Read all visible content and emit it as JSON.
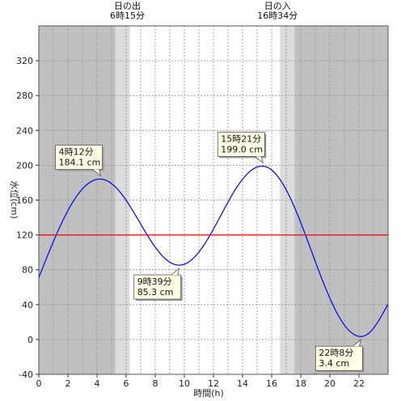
{
  "chart_data": {
    "type": "line",
    "xlabel": "時間(h)",
    "ylabel": "水位(cm)",
    "xlim": [
      0,
      24
    ],
    "ylim": [
      -40,
      360
    ],
    "xticks": [
      0,
      2,
      4,
      6,
      8,
      10,
      12,
      14,
      16,
      18,
      20,
      22
    ],
    "yticks": [
      -40,
      0,
      40,
      80,
      120,
      160,
      200,
      240,
      280,
      320
    ],
    "grid": true,
    "colors": {
      "curve": "#0000ee",
      "reference": "#ee0000",
      "night": "#c0c0c0",
      "twilight": "#dcdcdc",
      "day": "#ffffff",
      "annotation_fill": "#ffffe6"
    },
    "reference_line": {
      "y": 120
    },
    "sun": {
      "sunrise": {
        "hour": 6.25,
        "label": "日の出",
        "time": "6時15分"
      },
      "sunset": {
        "hour": 16.567,
        "label": "日の入",
        "time": "16時34分"
      },
      "twilight_minutes": 60
    },
    "extremes": [
      {
        "hour": 4.2,
        "value": 184.1,
        "time": "4時12分",
        "level": "184.1 cm"
      },
      {
        "hour": 9.65,
        "value": 85.3,
        "time": "9時39分",
        "level": "85.3 cm"
      },
      {
        "hour": 15.35,
        "value": 199.0,
        "time": "15時21分",
        "level": "199.0 cm"
      },
      {
        "hour": 22.133,
        "value": 3.4,
        "time": "22時8分",
        "level": "3.4 cm"
      }
    ],
    "series": [
      {
        "x": [
          0,
          24
        ],
        "y_start": 71,
        "y_end": 41
      }
    ]
  }
}
